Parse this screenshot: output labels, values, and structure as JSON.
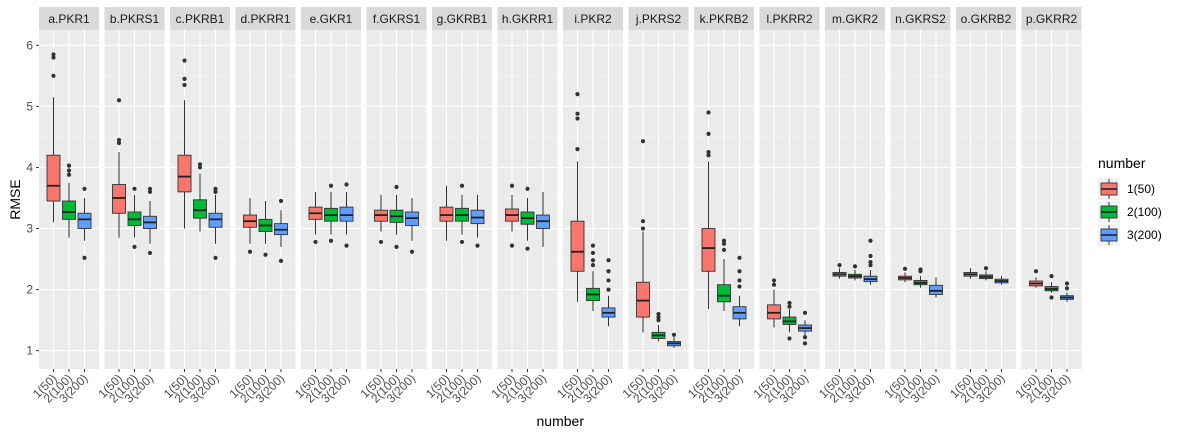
{
  "chart_data": {
    "type": "boxplot",
    "xlabel": "number",
    "ylabel": "RMSE",
    "ylim": [
      0.7,
      6.25
    ],
    "yticks": [
      1,
      2,
      3,
      4,
      5,
      6
    ],
    "categories": [
      "1(50)",
      "2(100)",
      "3(200)"
    ],
    "legend": {
      "title": "number",
      "position": "right",
      "entries": [
        {
          "label": "1(50)",
          "color": "#F8766D"
        },
        {
          "label": "2(100)",
          "color": "#00BA38"
        },
        {
          "label": "3(200)",
          "color": "#619CFF"
        }
      ]
    },
    "grid": true,
    "panels": [
      {
        "label": "a.PKR1",
        "boxes": [
          {
            "wlo": 3.1,
            "q1": 3.45,
            "med": 3.7,
            "q3": 4.2,
            "whi": 5.15,
            "out": [
              5.5,
              5.8,
              5.85
            ]
          },
          {
            "wlo": 2.85,
            "q1": 3.15,
            "med": 3.27,
            "q3": 3.45,
            "whi": 3.75,
            "out": [
              3.88,
              3.95,
              4.03
            ]
          },
          {
            "wlo": 2.8,
            "q1": 3.0,
            "med": 3.15,
            "q3": 3.25,
            "whi": 3.5,
            "out": [
              3.65,
              2.52
            ]
          }
        ]
      },
      {
        "label": "b.PKRS1",
        "boxes": [
          {
            "wlo": 2.85,
            "q1": 3.25,
            "med": 3.5,
            "q3": 3.72,
            "whi": 4.25,
            "out": [
              4.4,
              4.45,
              5.1
            ]
          },
          {
            "wlo": 2.85,
            "q1": 3.05,
            "med": 3.15,
            "q3": 3.27,
            "whi": 3.55,
            "out": [
              3.65,
              2.7
            ]
          },
          {
            "wlo": 2.75,
            "q1": 3.0,
            "med": 3.1,
            "q3": 3.2,
            "whi": 3.45,
            "out": [
              3.6,
              3.65,
              2.6
            ]
          }
        ]
      },
      {
        "label": "c.PKRB1",
        "boxes": [
          {
            "wlo": 3.0,
            "q1": 3.6,
            "med": 3.85,
            "q3": 4.2,
            "whi": 5.1,
            "out": [
              5.35,
              5.45,
              5.75
            ]
          },
          {
            "wlo": 2.95,
            "q1": 3.17,
            "med": 3.3,
            "q3": 3.47,
            "whi": 3.9,
            "out": [
              4.0,
              4.05
            ]
          },
          {
            "wlo": 2.75,
            "q1": 3.02,
            "med": 3.15,
            "q3": 3.25,
            "whi": 3.55,
            "out": [
              3.65,
              3.6,
              2.52
            ]
          }
        ]
      },
      {
        "label": "d.PKRR1",
        "boxes": [
          {
            "wlo": 2.75,
            "q1": 3.02,
            "med": 3.12,
            "q3": 3.22,
            "whi": 3.5,
            "out": [
              2.62
            ]
          },
          {
            "wlo": 2.75,
            "q1": 2.95,
            "med": 3.05,
            "q3": 3.15,
            "whi": 3.45,
            "out": [
              2.57
            ]
          },
          {
            "wlo": 2.7,
            "q1": 2.9,
            "med": 2.98,
            "q3": 3.08,
            "whi": 3.3,
            "out": [
              3.45,
              2.47
            ]
          }
        ]
      },
      {
        "label": "e.GKR1",
        "boxes": [
          {
            "wlo": 2.9,
            "q1": 3.15,
            "med": 3.25,
            "q3": 3.35,
            "whi": 3.6,
            "out": [
              2.78
            ]
          },
          {
            "wlo": 2.9,
            "q1": 3.12,
            "med": 3.22,
            "q3": 3.33,
            "whi": 3.6,
            "out": [
              3.7,
              2.8
            ]
          },
          {
            "wlo": 2.9,
            "q1": 3.12,
            "med": 3.22,
            "q3": 3.35,
            "whi": 3.6,
            "out": [
              3.72,
              2.72
            ]
          }
        ]
      },
      {
        "label": "f.GKRS1",
        "boxes": [
          {
            "wlo": 2.95,
            "q1": 3.12,
            "med": 3.22,
            "q3": 3.3,
            "whi": 3.55,
            "out": [
              2.78
            ]
          },
          {
            "wlo": 2.9,
            "q1": 3.1,
            "med": 3.2,
            "q3": 3.3,
            "whi": 3.55,
            "out": [
              3.68,
              2.7
            ]
          },
          {
            "wlo": 2.8,
            "q1": 3.05,
            "med": 3.17,
            "q3": 3.27,
            "whi": 3.5,
            "out": [
              2.62
            ]
          }
        ]
      },
      {
        "label": "g.GKRB1",
        "boxes": [
          {
            "wlo": 2.8,
            "q1": 3.12,
            "med": 3.22,
            "q3": 3.35,
            "whi": 3.7,
            "out": []
          },
          {
            "wlo": 2.9,
            "q1": 3.12,
            "med": 3.22,
            "q3": 3.33,
            "whi": 3.55,
            "out": [
              3.7,
              2.78
            ]
          },
          {
            "wlo": 2.85,
            "q1": 3.08,
            "med": 3.18,
            "q3": 3.3,
            "whi": 3.55,
            "out": [
              2.72
            ]
          }
        ]
      },
      {
        "label": "h.GKRR1",
        "boxes": [
          {
            "wlo": 2.95,
            "q1": 3.12,
            "med": 3.22,
            "q3": 3.32,
            "whi": 3.55,
            "out": [
              3.7,
              2.72
            ]
          },
          {
            "wlo": 2.8,
            "q1": 3.07,
            "med": 3.17,
            "q3": 3.27,
            "whi": 3.5,
            "out": [
              3.65,
              2.67
            ]
          },
          {
            "wlo": 2.7,
            "q1": 3.0,
            "med": 3.12,
            "q3": 3.22,
            "whi": 3.6,
            "out": []
          }
        ]
      },
      {
        "label": "i.PKR2",
        "boxes": [
          {
            "wlo": 1.8,
            "q1": 2.3,
            "med": 2.62,
            "q3": 3.12,
            "whi": 4.1,
            "out": [
              4.3,
              4.8,
              4.88,
              5.2
            ]
          },
          {
            "wlo": 1.65,
            "q1": 1.82,
            "med": 1.92,
            "q3": 2.02,
            "whi": 2.3,
            "out": [
              2.4,
              2.48,
              2.6,
              2.72
            ]
          },
          {
            "wlo": 1.4,
            "q1": 1.55,
            "med": 1.62,
            "q3": 1.7,
            "whi": 1.9,
            "out": [
              2.0,
              2.15,
              2.3,
              2.48
            ]
          }
        ]
      },
      {
        "label": "j.PKRS2",
        "boxes": [
          {
            "wlo": 1.3,
            "q1": 1.55,
            "med": 1.82,
            "q3": 2.12,
            "whi": 2.95,
            "out": [
              3.0,
              3.12,
              4.43
            ]
          },
          {
            "wlo": 1.15,
            "q1": 1.2,
            "med": 1.25,
            "q3": 1.3,
            "whi": 1.42,
            "out": [
              1.5,
              1.55,
              1.6
            ]
          },
          {
            "wlo": 1.05,
            "q1": 1.08,
            "med": 1.12,
            "q3": 1.15,
            "whi": 1.22,
            "out": [
              1.26
            ]
          }
        ]
      },
      {
        "label": "k.PKRB2",
        "boxes": [
          {
            "wlo": 1.68,
            "q1": 2.3,
            "med": 2.68,
            "q3": 3.0,
            "whi": 4.1,
            "out": [
              4.2,
              4.25,
              4.55,
              4.9
            ]
          },
          {
            "wlo": 1.65,
            "q1": 1.8,
            "med": 1.9,
            "q3": 2.08,
            "whi": 2.5,
            "out": [
              2.65,
              2.75,
              2.8
            ]
          },
          {
            "wlo": 1.4,
            "q1": 1.52,
            "med": 1.62,
            "q3": 1.72,
            "whi": 1.9,
            "out": [
              2.05,
              2.15,
              2.3,
              2.52
            ]
          }
        ]
      },
      {
        "label": "l.PKRR2",
        "boxes": [
          {
            "wlo": 1.38,
            "q1": 1.52,
            "med": 1.62,
            "q3": 1.75,
            "whi": 2.0,
            "out": [
              2.08,
              2.15
            ]
          },
          {
            "wlo": 1.3,
            "q1": 1.43,
            "med": 1.48,
            "q3": 1.55,
            "whi": 1.68,
            "out": [
              1.72,
              1.78,
              1.2
            ]
          },
          {
            "wlo": 1.25,
            "q1": 1.32,
            "med": 1.37,
            "q3": 1.42,
            "whi": 1.5,
            "out": [
              1.62,
              1.22,
              1.12
            ]
          }
        ]
      },
      {
        "label": "m.GKR2",
        "boxes": [
          {
            "wlo": 2.18,
            "q1": 2.22,
            "med": 2.25,
            "q3": 2.28,
            "whi": 2.35,
            "out": [
              2.4
            ]
          },
          {
            "wlo": 2.15,
            "q1": 2.19,
            "med": 2.22,
            "q3": 2.25,
            "whi": 2.32,
            "out": [
              2.38
            ]
          },
          {
            "wlo": 2.08,
            "q1": 2.13,
            "med": 2.17,
            "q3": 2.22,
            "whi": 2.32,
            "out": [
              2.4,
              2.45,
              2.55,
              2.8
            ]
          }
        ]
      },
      {
        "label": "n.GKRS2",
        "boxes": [
          {
            "wlo": 2.12,
            "q1": 2.16,
            "med": 2.19,
            "q3": 2.22,
            "whi": 2.28,
            "out": [
              2.34
            ]
          },
          {
            "wlo": 2.03,
            "q1": 2.08,
            "med": 2.11,
            "q3": 2.15,
            "whi": 2.22,
            "out": [
              2.3,
              2.33
            ]
          },
          {
            "wlo": 1.87,
            "q1": 1.92,
            "med": 1.98,
            "q3": 2.07,
            "whi": 2.2,
            "out": []
          }
        ]
      },
      {
        "label": "o.GKRB2",
        "boxes": [
          {
            "wlo": 2.18,
            "q1": 2.22,
            "med": 2.25,
            "q3": 2.28,
            "whi": 2.35,
            "out": []
          },
          {
            "wlo": 2.15,
            "q1": 2.18,
            "med": 2.21,
            "q3": 2.24,
            "whi": 2.3,
            "out": [
              2.35
            ]
          },
          {
            "wlo": 2.08,
            "q1": 2.11,
            "med": 2.14,
            "q3": 2.17,
            "whi": 2.22,
            "out": []
          }
        ]
      },
      {
        "label": "p.GKRR2",
        "boxes": [
          {
            "wlo": 2.03,
            "q1": 2.06,
            "med": 2.1,
            "q3": 2.14,
            "whi": 2.2,
            "out": [
              2.3
            ]
          },
          {
            "wlo": 1.95,
            "q1": 1.98,
            "med": 2.01,
            "q3": 2.05,
            "whi": 2.12,
            "out": [
              2.22,
              1.87
            ]
          },
          {
            "wlo": 1.8,
            "q1": 1.84,
            "med": 1.87,
            "q3": 1.9,
            "whi": 1.95,
            "out": [
              2.02,
              2.1
            ]
          }
        ]
      }
    ]
  }
}
